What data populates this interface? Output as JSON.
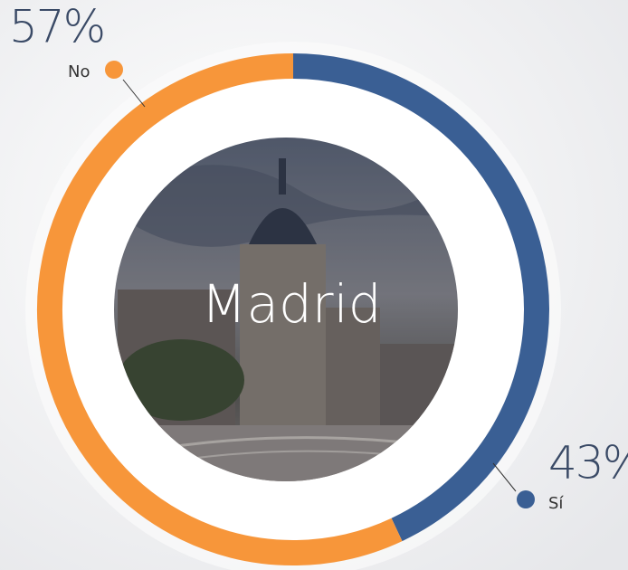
{
  "chart_data": {
    "type": "donut",
    "center_label": "Madrid",
    "categories": [
      "Sí",
      "No"
    ],
    "values": [
      43,
      57
    ],
    "value_labels": [
      "43%",
      "57%"
    ],
    "colors": [
      "#3a5f94",
      "#f7963a"
    ]
  }
}
